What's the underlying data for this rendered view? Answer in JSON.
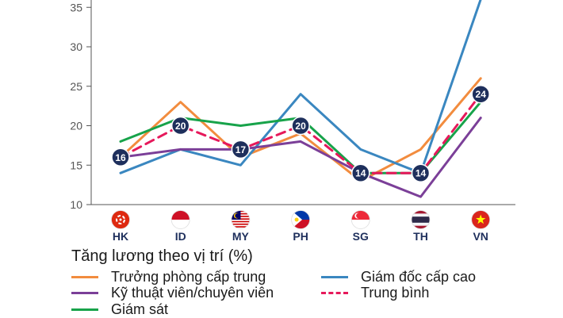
{
  "chart_data": {
    "type": "line",
    "categories": [
      "HK",
      "ID",
      "MY",
      "PH",
      "SG",
      "TH",
      "VN"
    ],
    "y_ticks": [
      10,
      15,
      20,
      25,
      30,
      35
    ],
    "ylim": [
      10,
      36
    ],
    "grid": false,
    "legend_title": "Tăng lương theo vị trí (%)",
    "legend_position": "bottom",
    "series": [
      {
        "name": "Trưởng phòng cấp trung",
        "color": "#f28c3e",
        "dashed": false,
        "values": [
          16,
          23,
          16,
          19,
          13,
          17,
          26
        ]
      },
      {
        "name": "Giám đốc cấp cao",
        "color": "#3a87c0",
        "dashed": false,
        "values": [
          14,
          17,
          15,
          24,
          17,
          14,
          36
        ]
      },
      {
        "name": "Kỹ thuật viên/chuyên viên",
        "color": "#7b3f98",
        "dashed": false,
        "values": [
          16,
          17,
          17,
          18,
          14,
          11,
          21
        ]
      },
      {
        "name": "Trung bình",
        "color": "#e6195b",
        "dashed": true,
        "values": [
          16,
          20,
          17,
          20,
          14,
          14,
          24
        ]
      },
      {
        "name": "Giám sát",
        "color": "#17a34a",
        "dashed": false,
        "values": [
          18,
          21,
          20,
          21,
          14,
          14,
          23
        ]
      }
    ],
    "average_labels": [
      "16",
      "20",
      "17",
      "20",
      "14",
      "14",
      "24"
    ],
    "label_colors": {
      "badge": "#1e2f5c",
      "badge_text": "#ffffff",
      "category_text": "#1e2f5c",
      "axis": "#555555"
    },
    "flags": [
      "hong-kong-flag-icon",
      "indonesia-flag-icon",
      "malaysia-flag-icon",
      "philippines-flag-icon",
      "singapore-flag-icon",
      "thailand-flag-icon",
      "vietnam-flag-icon"
    ]
  }
}
